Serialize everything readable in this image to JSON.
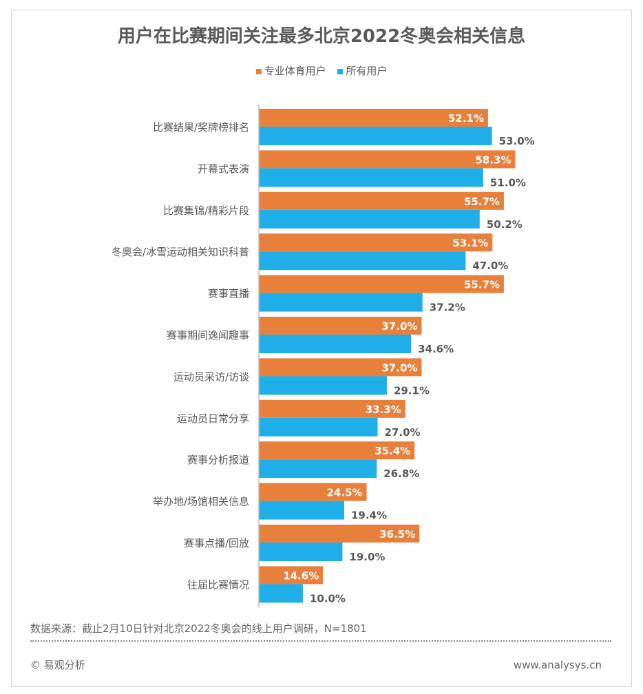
{
  "chart_data": {
    "type": "bar",
    "orientation": "horizontal",
    "title": "用户在比赛期间关注最多北京2022冬奥会相关信息",
    "categories": [
      "比赛结果/奖牌榜排名",
      "开幕式表演",
      "比赛集锦/精彩片段",
      "冬奥会/冰雪运动相关知识科普",
      "赛事直播",
      "赛事期间逸闻趣事",
      "运动员采访/访谈",
      "运动员日常分享",
      "赛事分析报道",
      "举办地/场馆相关信息",
      "赛事点播/回放",
      "往届比赛情况"
    ],
    "series": [
      {
        "name": "专业体育用户",
        "color": "#E8803C",
        "values": [
          52.1,
          58.3,
          55.7,
          53.1,
          55.7,
          37.0,
          37.0,
          33.3,
          35.4,
          24.5,
          36.5,
          14.6
        ]
      },
      {
        "name": "所有用户",
        "color": "#1FAEE8",
        "values": [
          53.0,
          51.0,
          50.2,
          47.0,
          37.2,
          34.6,
          29.1,
          27.0,
          26.8,
          19.4,
          19.0,
          10.0
        ]
      }
    ],
    "unit": "%",
    "xlim": [
      0,
      70
    ],
    "legend": "top-center",
    "grid": false
  },
  "footer": {
    "source": "数据来源：截止2月10日针对北京2022冬奥会的线上用户调研，N=1801",
    "copyright": "© 易观分析",
    "website": "www.analysys.cn"
  }
}
